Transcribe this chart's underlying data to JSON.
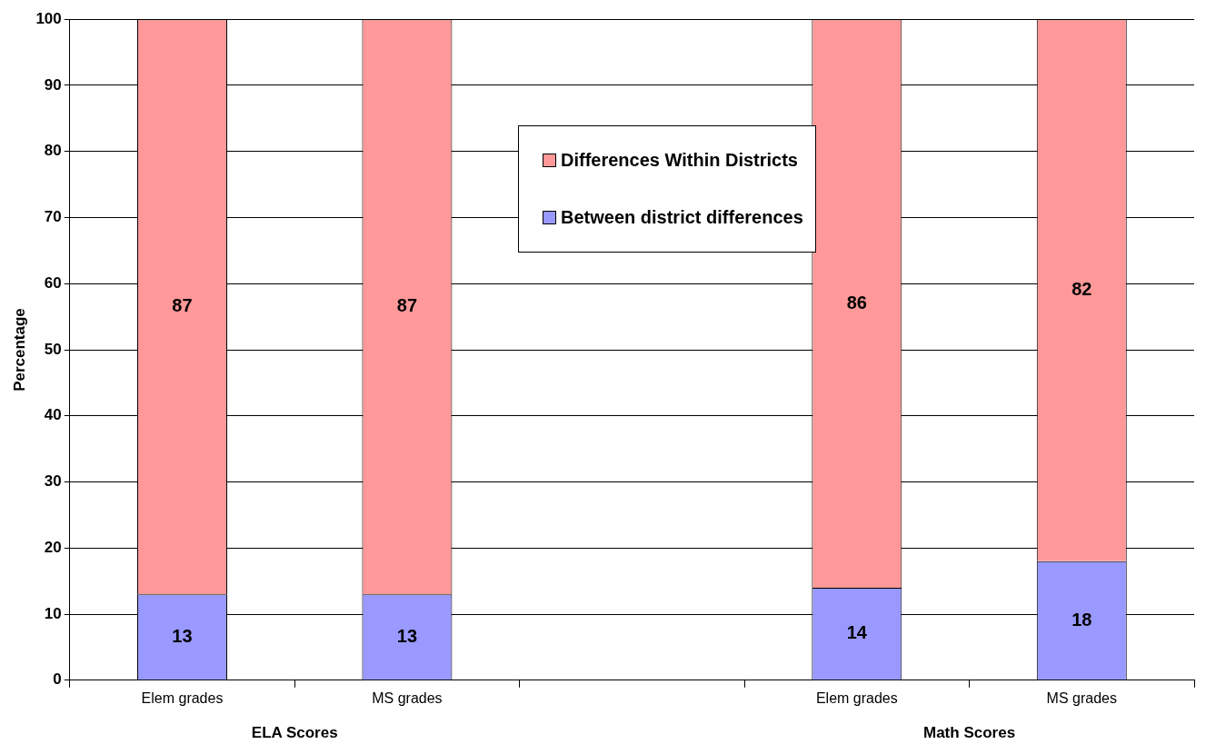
{
  "chart_data": {
    "type": "bar",
    "stacked": true,
    "ylabel": "Percentage",
    "categories": [
      "Elem grades",
      "MS grades",
      null,
      "Elem grades",
      "MS grades"
    ],
    "series": [
      {
        "name": "Between district differences",
        "color": "#9999ff",
        "values": [
          13,
          13,
          null,
          14,
          18
        ]
      },
      {
        "name": "Differences Within Districts",
        "color": "#ff9999",
        "values": [
          87,
          87,
          null,
          86,
          82
        ]
      }
    ],
    "ylim": [
      0,
      100
    ],
    "yticks": [
      0,
      10,
      20,
      30,
      40,
      50,
      60,
      70,
      80,
      90,
      100
    ],
    "grid": "y",
    "legend": "top",
    "data_labels": true,
    "annotations": [
      "ELA Scores",
      "Math Scores"
    ]
  }
}
